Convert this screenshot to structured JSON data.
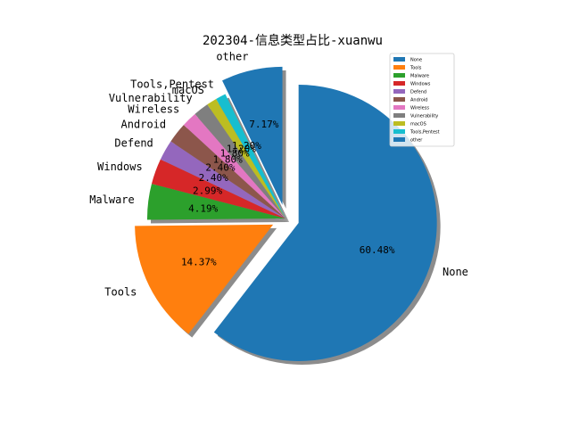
{
  "chart_data": {
    "type": "pie",
    "title": "202304-信息类型占比-xuanwu",
    "legend_position": "top-right",
    "shadow": true,
    "labels": [
      "None",
      "Tools",
      "Malware",
      "Windows",
      "Defend",
      "Android",
      "Wireless",
      "Vulnerability",
      "macOS",
      "Tools,Pentest",
      "other"
    ],
    "values": [
      60.48,
      14.37,
      4.19,
      2.99,
      2.4,
      2.4,
      1.8,
      1.8,
      1.2,
      1.2,
      7.17
    ],
    "percent_labels": [
      "60.48%",
      "14.37%",
      "4.19%",
      "2.99%",
      "2.40%",
      "2.40%",
      "1.80%",
      "1.80%",
      "1.20%",
      "1.20%",
      "7.17%"
    ],
    "colors": [
      "#1f77b4",
      "#ff7f0e",
      "#2ca02c",
      "#d62728",
      "#9467bd",
      "#8c564b",
      "#e377c2",
      "#7f7f7f",
      "#bcbd22",
      "#17becf",
      "#1f77b4"
    ],
    "explode": [
      0.1,
      0.1,
      0,
      0,
      0,
      0,
      0,
      0,
      0,
      0,
      0.1
    ],
    "start_angle_deg": 90,
    "direction": "clockwise"
  }
}
